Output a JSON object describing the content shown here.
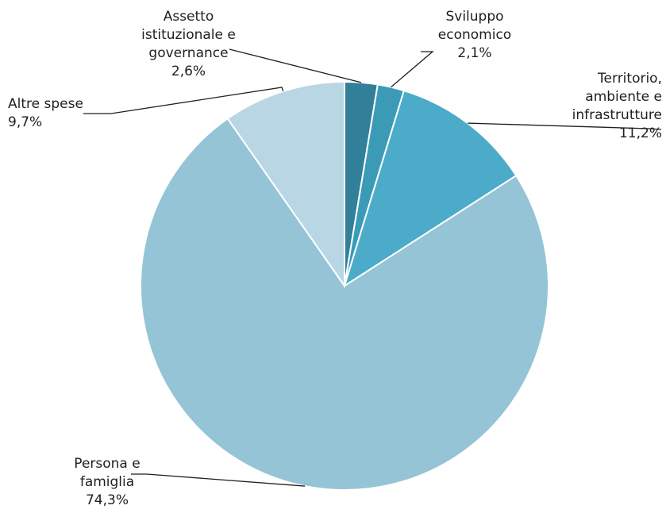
{
  "chart_data": {
    "type": "pie",
    "slices": [
      {
        "label_lines": [
          "Assetto",
          "istituzionale  e",
          "governance"
        ],
        "value": 2.6,
        "value_label": "2,6%",
        "color": "#327f99"
      },
      {
        "label_lines": [
          "Sviluppo",
          "economico"
        ],
        "value": 2.1,
        "value_label": "2,1%",
        "color": "#3b9bb7"
      },
      {
        "label_lines": [
          "Territorio,",
          "ambiente  e",
          "infrastrutture"
        ],
        "value": 11.2,
        "value_label": "11,2%",
        "color": "#4babc8"
      },
      {
        "label_lines": [
          "Persona e",
          "famiglia"
        ],
        "value": 74.3,
        "value_label": "74,3%",
        "color": "#94c4d6"
      },
      {
        "label_lines": [
          "Altre spese"
        ],
        "value": 9.7,
        "value_label": "9,7%",
        "color": "#b8d6e3"
      }
    ]
  }
}
